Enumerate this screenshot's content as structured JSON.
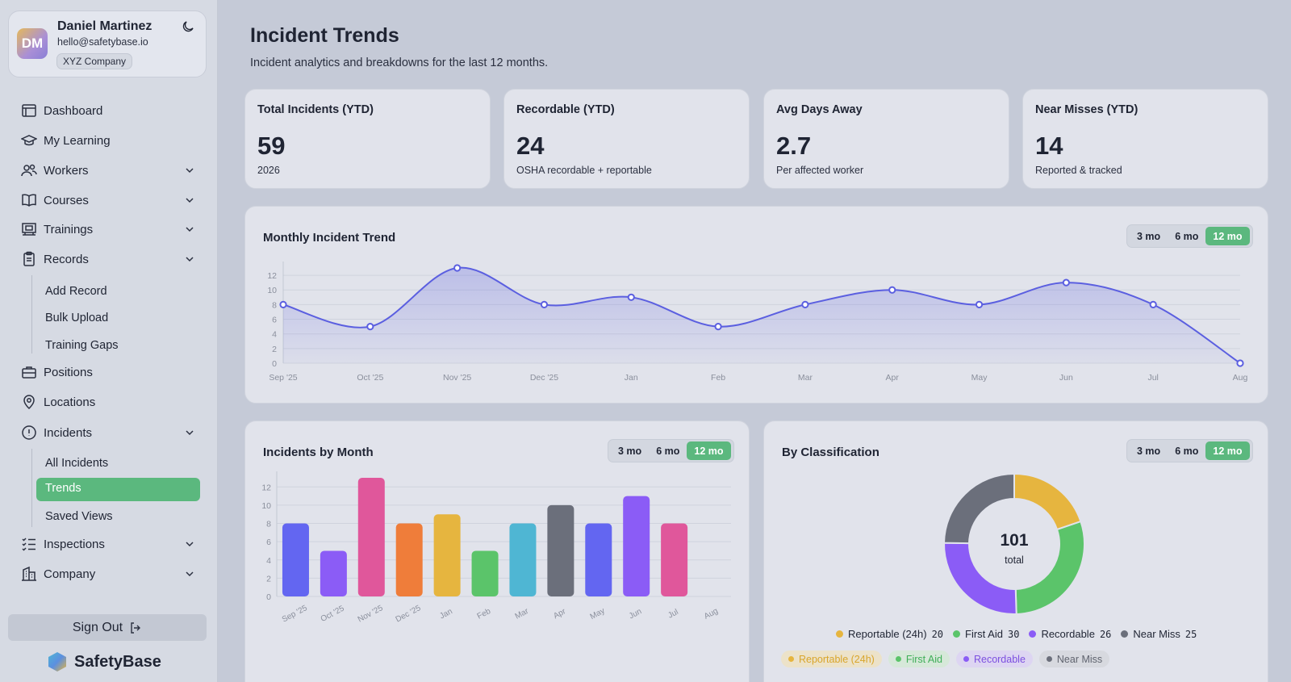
{
  "user": {
    "initials": "DM",
    "name": "Daniel Martinez",
    "email": "hello@safetybase.io",
    "company": "XYZ Company"
  },
  "nav": {
    "dashboard": "Dashboard",
    "my_learning": "My Learning",
    "workers": "Workers",
    "courses": "Courses",
    "trainings": "Trainings",
    "records": "Records",
    "records_sub": [
      "Add Record",
      "Bulk Upload",
      "Training Gaps"
    ],
    "positions": "Positions",
    "locations": "Locations",
    "incidents": "Incidents",
    "incidents_sub": [
      "All Incidents",
      "Trends",
      "Saved Views"
    ],
    "inspections": "Inspections",
    "company": "Company"
  },
  "signout": "Sign Out",
  "brand": "SafetyBase",
  "page": {
    "title": "Incident Trends",
    "subtitle": "Incident analytics and breakdowns for the last 12 months."
  },
  "kpis": [
    {
      "label": "Total Incidents (YTD)",
      "value": "59",
      "note": "2026"
    },
    {
      "label": "Recordable (YTD)",
      "value": "24",
      "note": "OSHA recordable + reportable"
    },
    {
      "label": "Avg Days Away",
      "value": "2.7",
      "note": "Per affected worker"
    },
    {
      "label": "Near Misses (YTD)",
      "value": "14",
      "note": "Reported & tracked"
    }
  ],
  "range_options": [
    "3 mo",
    "6 mo",
    "12 mo"
  ],
  "range_selected": "12 mo",
  "colors": {
    "accent": "#5bb87e",
    "line": "#5b5fe0"
  },
  "chart_data": [
    {
      "type": "area",
      "title": "Monthly Incident Trend",
      "categories": [
        "Sep '25",
        "Oct '25",
        "Nov '25",
        "Dec '25",
        "Jan",
        "Feb",
        "Mar",
        "Apr",
        "May",
        "Jun",
        "Jul",
        "Aug"
      ],
      "values": [
        8,
        5,
        13,
        8,
        9,
        5,
        8,
        10,
        8,
        11,
        8,
        0
      ],
      "yticks": [
        0,
        2,
        4,
        6,
        8,
        10,
        12
      ],
      "ylim": [
        0,
        13
      ],
      "grid": true
    },
    {
      "type": "bar",
      "title": "Incidents by Month",
      "categories": [
        "Sep '25",
        "Oct '25",
        "Nov '25",
        "Dec '25",
        "Jan",
        "Feb",
        "Mar",
        "Apr",
        "May",
        "Jun",
        "Jul",
        "Aug"
      ],
      "values": [
        8,
        5,
        13,
        8,
        9,
        5,
        8,
        10,
        8,
        11,
        8,
        0
      ],
      "colors": [
        "#6366f1",
        "#8b5cf6",
        "#e0579b",
        "#ef7d3a",
        "#e6b53f",
        "#5bc46a",
        "#4fb6d3",
        "#6b6f7b",
        "#6366f1",
        "#8b5cf6",
        "#e0579b",
        "#ef7d3a"
      ],
      "yticks": [
        0,
        2,
        4,
        6,
        8,
        10,
        12
      ],
      "ylim": [
        0,
        13
      ],
      "grid": true
    },
    {
      "type": "pie",
      "title": "By Classification",
      "total": "101",
      "total_label": "total",
      "slices": [
        {
          "label": "Reportable (24h)",
          "value": 20,
          "color": "#e6b53f"
        },
        {
          "label": "First Aid",
          "value": 30,
          "color": "#5bc46a"
        },
        {
          "label": "Recordable",
          "value": 26,
          "color": "#8b5cf6"
        },
        {
          "label": "Near Miss",
          "value": 25,
          "color": "#6b6f7b"
        }
      ]
    }
  ]
}
